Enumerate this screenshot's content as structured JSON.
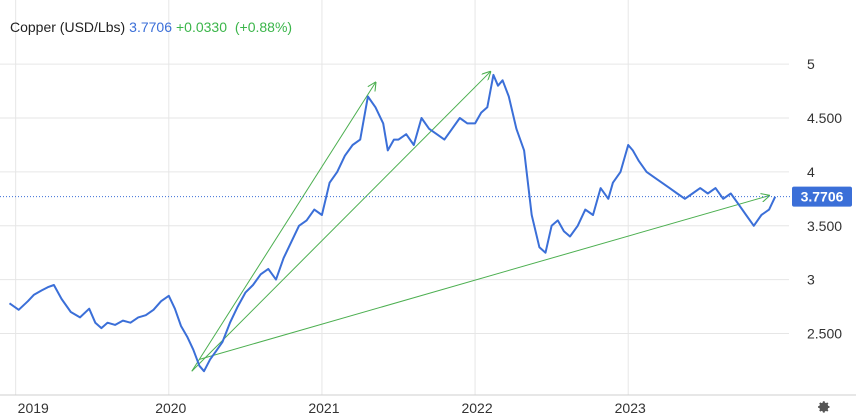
{
  "legend": {
    "symbol": "Copper (USD/Lbs)",
    "last": "3.7706",
    "change": "+0.0330",
    "change_pct": "(+0.88%)"
  },
  "colors": {
    "line": "#3b6fd8",
    "change": "#3bb54a",
    "trend": "#4caf50",
    "grid": "#e6e6e6",
    "last_label_bg": "#3b6fd8"
  },
  "icons": {
    "settings": "gear-icon"
  },
  "chart_data": {
    "type": "line",
    "title": "",
    "xlabel": "",
    "ylabel": "",
    "x_ticks": [
      "2019",
      "2020",
      "2021",
      "2022",
      "2023"
    ],
    "x_tick_positions": [
      2019.0,
      2020.0,
      2021.0,
      2022.0,
      2023.0
    ],
    "xlim": [
      2018.95,
      2024.05
    ],
    "y_ticks": [
      2.5,
      3,
      3.5,
      4,
      4.5,
      5
    ],
    "y_tick_labels": [
      "2.500",
      "3",
      "3.500",
      "4",
      "4.500",
      "5"
    ],
    "ylim": [
      2.05,
      5.15
    ],
    "grid": true,
    "last_value": 3.7706,
    "last_label": "3.7706",
    "series": [
      {
        "x": [
          2018.96,
          2019.02,
          2019.08,
          2019.12,
          2019.17,
          2019.21,
          2019.25,
          2019.3,
          2019.36,
          2019.42,
          2019.48,
          2019.52,
          2019.56,
          2019.6,
          2019.65,
          2019.7,
          2019.75,
          2019.8,
          2019.85,
          2019.9,
          2019.95,
          2020.0,
          2020.04,
          2020.08,
          2020.12,
          2020.16,
          2020.2,
          2020.23,
          2020.27,
          2020.31,
          2020.35,
          2020.4,
          2020.45,
          2020.5,
          2020.55,
          2020.6,
          2020.65,
          2020.7,
          2020.75,
          2020.8,
          2020.85,
          2020.9,
          2020.95,
          2021.0,
          2021.05,
          2021.1,
          2021.15,
          2021.2,
          2021.25,
          2021.3,
          2021.35,
          2021.4,
          2021.43,
          2021.47,
          2021.5,
          2021.55,
          2021.6,
          2021.65,
          2021.7,
          2021.75,
          2021.8,
          2021.85,
          2021.9,
          2021.95,
          2022.0,
          2022.04,
          2022.08,
          2022.12,
          2022.15,
          2022.18,
          2022.22,
          2022.27,
          2022.32,
          2022.37,
          2022.42,
          2022.46,
          2022.5,
          2022.54,
          2022.58,
          2022.62,
          2022.67,
          2022.72,
          2022.77,
          2022.82,
          2022.87,
          2022.9,
          2022.95,
          2023.0,
          2023.03,
          2023.07,
          2023.12,
          2023.17,
          2023.22,
          2023.27,
          2023.32,
          2023.37,
          2023.42,
          2023.47,
          2023.52,
          2023.57,
          2023.62,
          2023.67,
          2023.72,
          2023.77,
          2023.82,
          2023.87,
          2023.92,
          2023.96
        ],
        "values": [
          2.78,
          2.72,
          2.8,
          2.86,
          2.9,
          2.93,
          2.95,
          2.82,
          2.7,
          2.65,
          2.73,
          2.6,
          2.55,
          2.6,
          2.58,
          2.62,
          2.6,
          2.65,
          2.67,
          2.72,
          2.8,
          2.85,
          2.73,
          2.57,
          2.47,
          2.35,
          2.2,
          2.15,
          2.26,
          2.34,
          2.42,
          2.6,
          2.75,
          2.88,
          2.95,
          3.05,
          3.1,
          3.0,
          3.2,
          3.35,
          3.5,
          3.55,
          3.65,
          3.6,
          3.9,
          4.0,
          4.15,
          4.25,
          4.3,
          4.7,
          4.6,
          4.45,
          4.2,
          4.3,
          4.3,
          4.35,
          4.25,
          4.5,
          4.4,
          4.35,
          4.3,
          4.4,
          4.5,
          4.45,
          4.45,
          4.55,
          4.6,
          4.9,
          4.8,
          4.85,
          4.7,
          4.4,
          4.2,
          3.6,
          3.3,
          3.25,
          3.5,
          3.55,
          3.45,
          3.4,
          3.5,
          3.65,
          3.6,
          3.85,
          3.75,
          3.9,
          4.0,
          4.25,
          4.2,
          4.1,
          4.0,
          3.95,
          3.9,
          3.85,
          3.8,
          3.75,
          3.8,
          3.85,
          3.8,
          3.85,
          3.75,
          3.8,
          3.7,
          3.6,
          3.5,
          3.6,
          3.65,
          3.77
        ]
      }
    ],
    "trendlines": [
      {
        "x": [
          2020.15,
          2021.35
        ],
        "y": [
          2.15,
          4.83
        ],
        "arrow": true
      },
      {
        "x": [
          2020.15,
          2022.1
        ],
        "y": [
          2.15,
          4.93
        ],
        "arrow": true
      },
      {
        "x": [
          2020.2,
          2023.92
        ],
        "y": [
          2.26,
          3.78
        ],
        "arrow": true
      }
    ]
  }
}
